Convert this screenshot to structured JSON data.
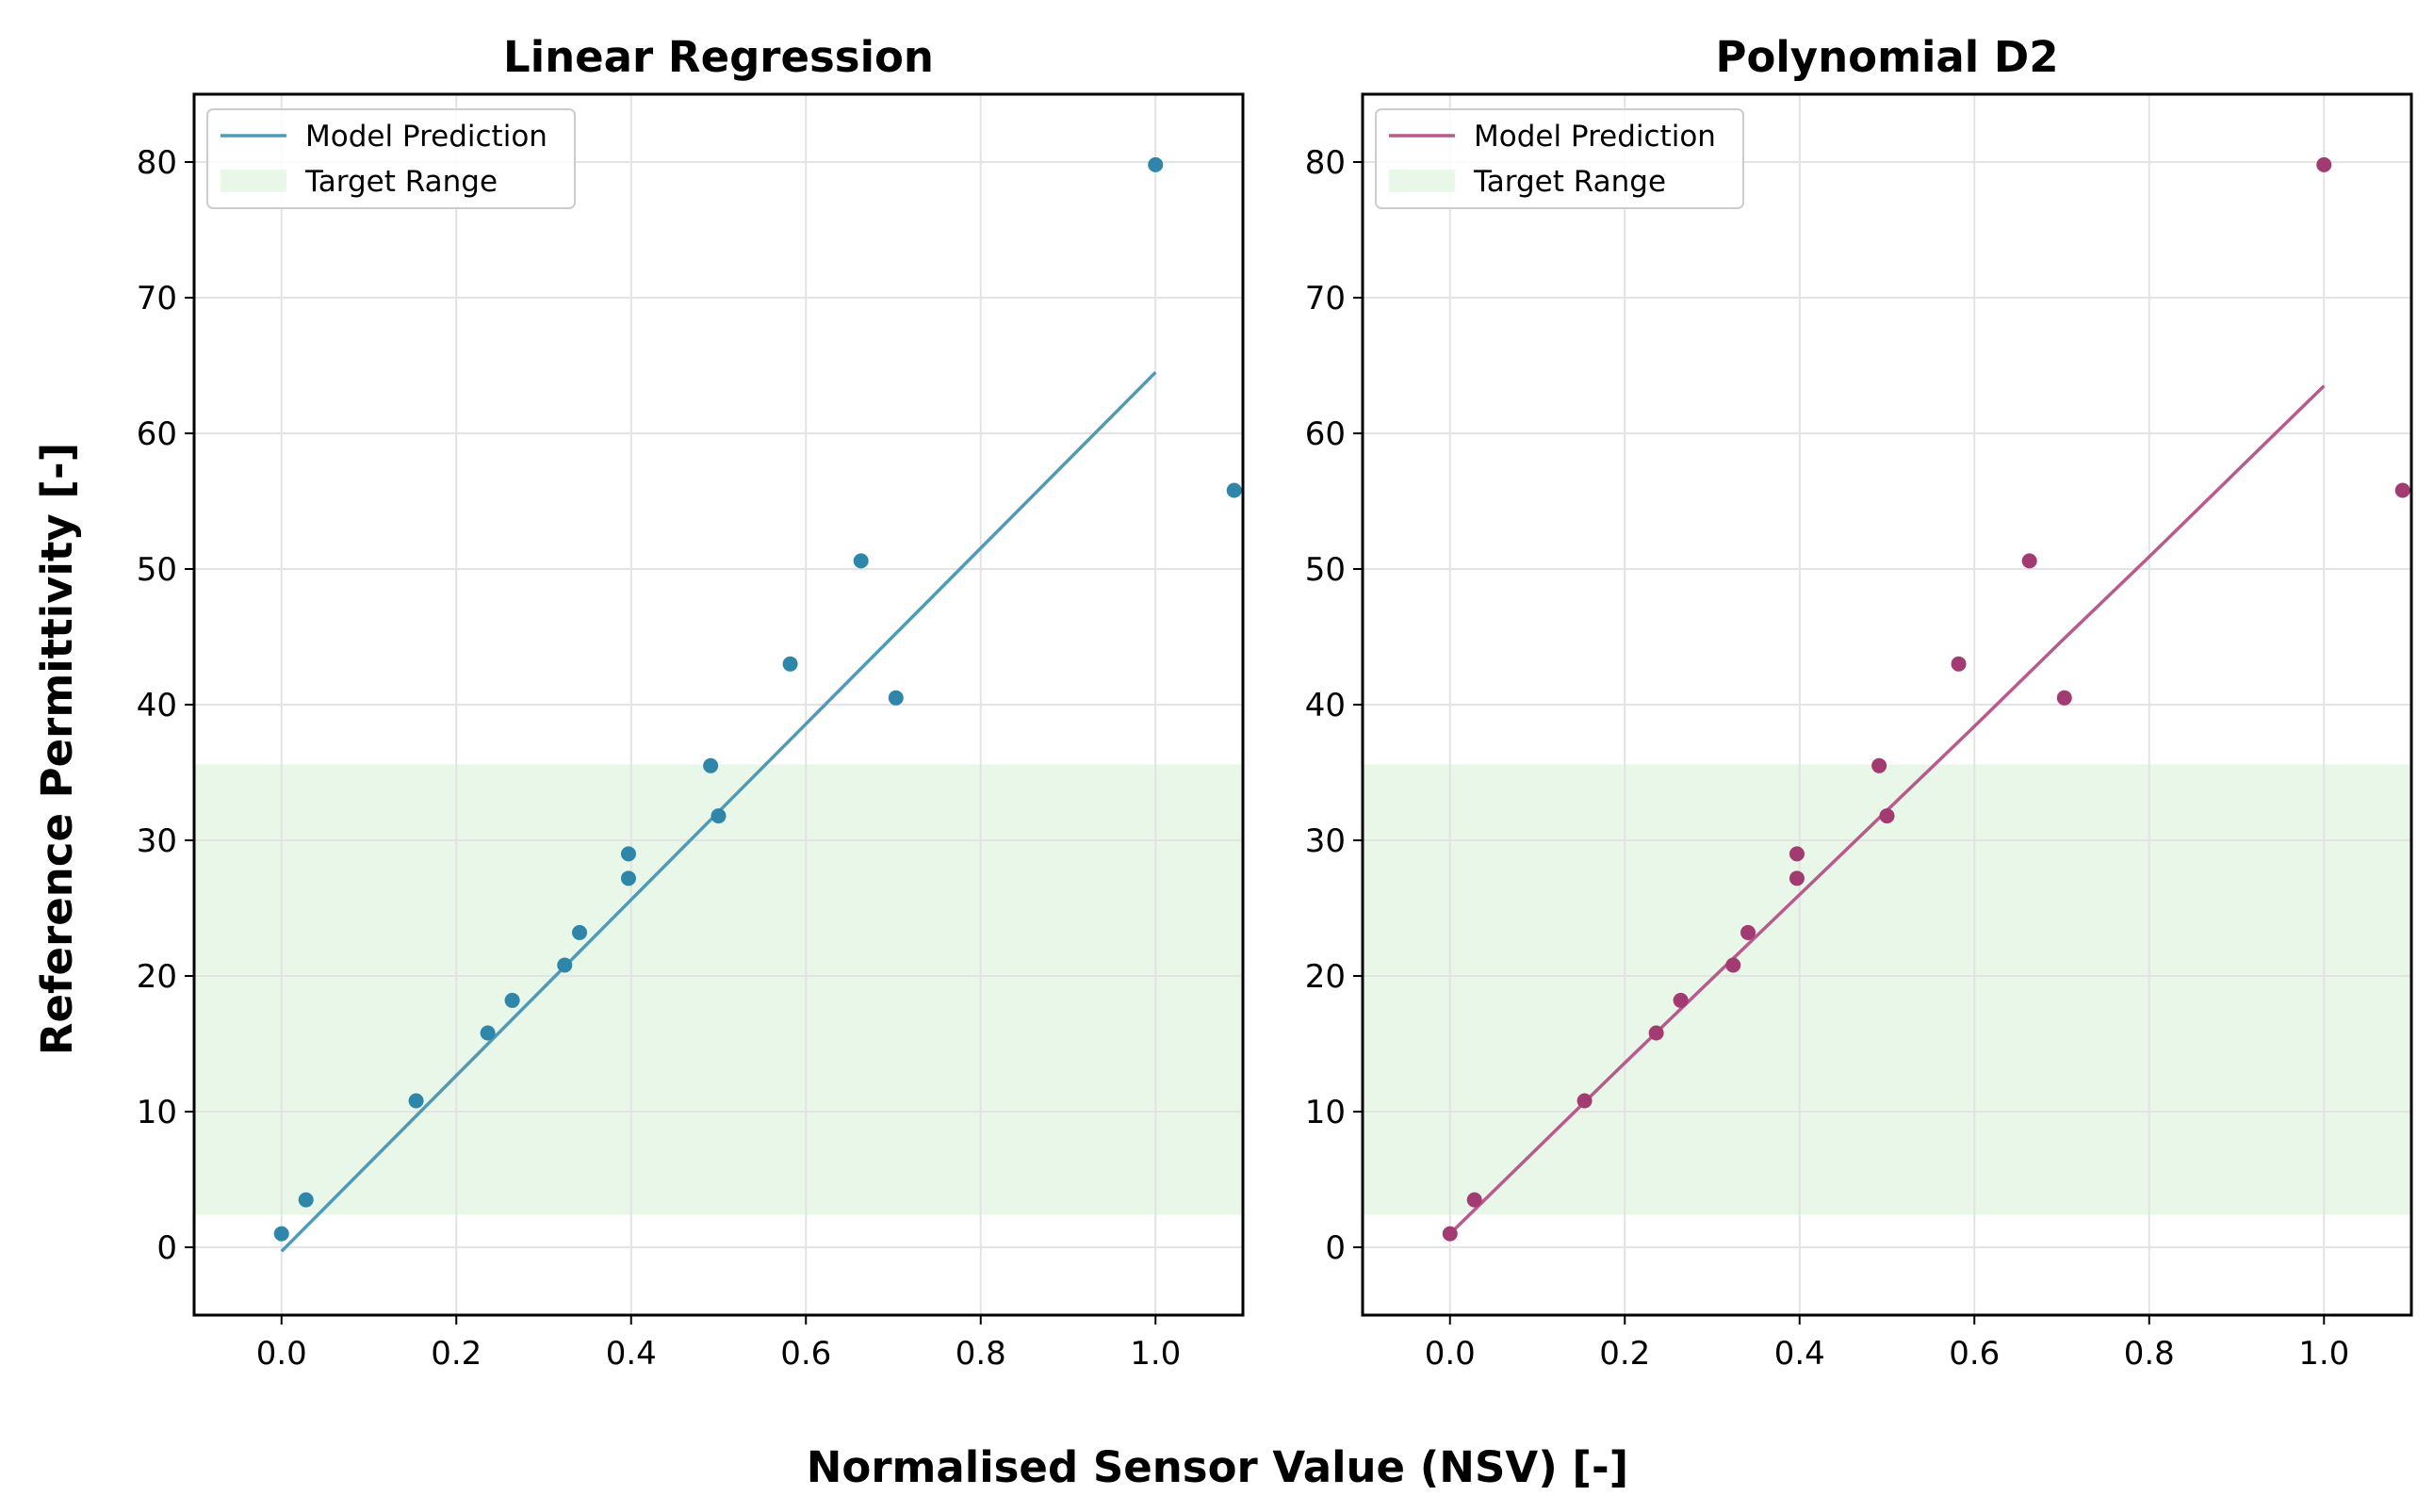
{
  "figure": {
    "xlabel": "Normalised Sensor Value (NSV) [-]",
    "ylabel": "Reference Permittivity [-]"
  },
  "colors": {
    "grid": "#e3e3e3",
    "target_fill": "#e8f7e8",
    "panel_border": "#000000"
  },
  "chart_data": [
    {
      "type": "scatter",
      "title": "Linear Regression",
      "xlim": [
        -0.1,
        1.1
      ],
      "ylim": [
        -5,
        85
      ],
      "xticks": [
        0.0,
        0.2,
        0.4,
        0.6,
        0.8,
        1.0
      ],
      "xtick_labels": [
        "0.0",
        "0.2",
        "0.4",
        "0.6",
        "0.8",
        "1.0"
      ],
      "yticks": [
        0,
        10,
        20,
        30,
        40,
        50,
        60,
        70,
        80
      ],
      "ytick_labels": [
        "0",
        "10",
        "20",
        "30",
        "40",
        "50",
        "60",
        "70",
        "80"
      ],
      "grid": true,
      "target_range": [
        2.4,
        35.6
      ],
      "point_color": "#2e86ab",
      "line_color": "#5199b8",
      "points": {
        "x": [
          0.0,
          0.028,
          0.154,
          0.236,
          0.264,
          0.324,
          0.341,
          0.397,
          0.397,
          0.491,
          0.5,
          0.582,
          0.663,
          0.703,
          1.0,
          1.09
        ],
        "y": [
          1.0,
          3.5,
          10.8,
          15.8,
          18.2,
          20.8,
          23.2,
          27.2,
          29.0,
          35.5,
          31.8,
          43.0,
          50.6,
          40.5,
          79.8,
          55.8
        ]
      },
      "line": {
        "x": [
          0.0,
          1.0
        ],
        "y": [
          -0.3,
          64.5
        ]
      },
      "legend": [
        {
          "label": "Model Prediction",
          "kind": "line"
        },
        {
          "label": "Target Range",
          "kind": "patch"
        }
      ],
      "legend_loc": "upper left"
    },
    {
      "type": "scatter",
      "title": "Polynomial D2",
      "xlim": [
        -0.1,
        1.1
      ],
      "ylim": [
        -5,
        85
      ],
      "xticks": [
        0.0,
        0.2,
        0.4,
        0.6,
        0.8,
        1.0
      ],
      "xtick_labels": [
        "0.0",
        "0.2",
        "0.4",
        "0.6",
        "0.8",
        "1.0"
      ],
      "yticks": [
        0,
        10,
        20,
        30,
        40,
        50,
        60,
        70,
        80
      ],
      "ytick_labels": [
        "0",
        "10",
        "20",
        "30",
        "40",
        "50",
        "60",
        "70",
        "80"
      ],
      "grid": true,
      "target_range": [
        2.4,
        35.6
      ],
      "point_color": "#a23b72",
      "line_color": "#b85a8c",
      "points": {
        "x": [
          0.0,
          0.028,
          0.154,
          0.236,
          0.264,
          0.324,
          0.341,
          0.397,
          0.397,
          0.491,
          0.5,
          0.582,
          0.663,
          0.703,
          1.0,
          1.09
        ],
        "y": [
          1.0,
          3.5,
          10.8,
          15.8,
          18.2,
          20.8,
          23.2,
          27.2,
          29.0,
          35.5,
          31.8,
          43.0,
          50.6,
          40.5,
          79.8,
          55.8
        ]
      },
      "line": {
        "x": [
          0.0,
          0.1,
          0.2,
          0.3,
          0.4,
          0.5,
          0.6,
          0.7,
          0.8,
          0.9,
          1.0
        ],
        "y": [
          1.0,
          7.3,
          13.6,
          19.8,
          26.0,
          32.2,
          38.4,
          44.7,
          50.9,
          57.2,
          63.5
        ]
      },
      "legend": [
        {
          "label": "Model Prediction",
          "kind": "line"
        },
        {
          "label": "Target Range",
          "kind": "patch"
        }
      ],
      "legend_loc": "upper left"
    }
  ]
}
